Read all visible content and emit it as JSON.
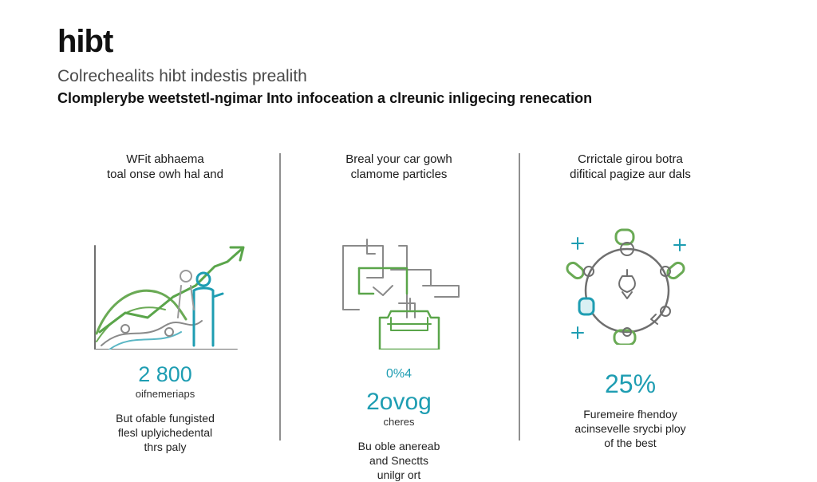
{
  "brand": "hibt",
  "subtitle": "Colrechealits hibt indestis prealith",
  "tagline": "Clomplerybe weetstetl-ngimar Into infoceation a clreunic inligecing renecation",
  "columns": [
    {
      "heading_line1": "WFit abhaema",
      "heading_line2": "toal onse owh hal and",
      "stat": "2 800",
      "stat_label": "oifnemeriaps",
      "desc_line1": "But ofable fungisted",
      "desc_line2": "flesl uplyichedental",
      "desc_line3": "thrs paly",
      "icon": "growth-chart-person-icon"
    },
    {
      "heading_line1": "Breal your car gowh",
      "heading_line2": "clamome particles",
      "stat_sup": "0%4",
      "stat": "2ovog",
      "stat_label": "cheres",
      "desc_line1": "Bu oble anereab",
      "desc_line2": "and Snectts",
      "desc_line3": "unilgr ort",
      "icon": "circuit-box-icon"
    },
    {
      "heading_line1": "Crrictale girou botra",
      "heading_line2": "difitical pagize aur dals",
      "stat": "25%",
      "stat_label": "",
      "desc_line1": "Furemeire fhendoy",
      "desc_line2": "acinsevelle srycbi ploy",
      "desc_line3": "of the best",
      "icon": "cycle-gear-icon"
    }
  ],
  "colors": {
    "accent_teal": "#1e9db2",
    "accent_green": "#5aa54a",
    "line_gray": "#8a8a8a"
  }
}
